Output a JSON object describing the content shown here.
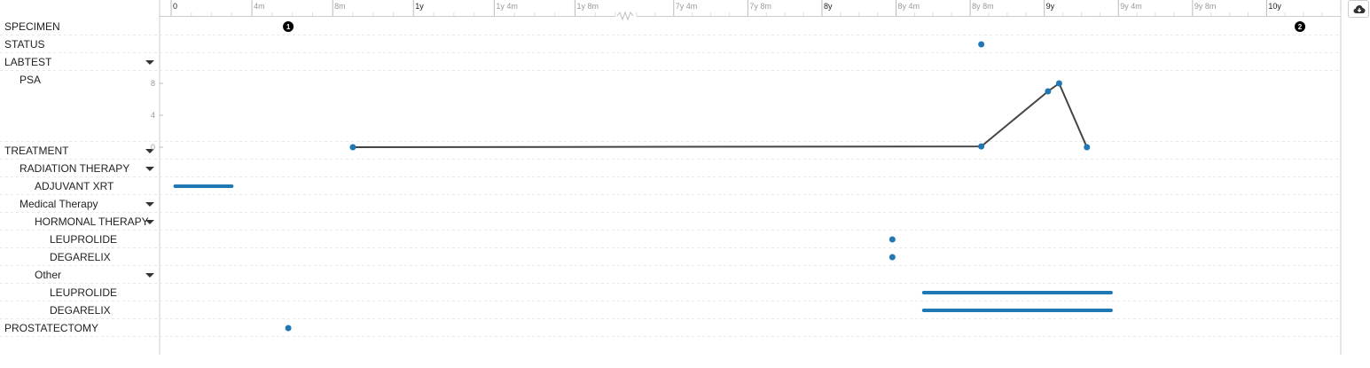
{
  "tracks": [
    {
      "label": "SPECIMEN",
      "indent": 0,
      "collapsible": false
    },
    {
      "label": "STATUS",
      "indent": 0,
      "collapsible": false
    },
    {
      "label": "LABTEST",
      "indent": 0,
      "collapsible": true
    },
    {
      "label": "PSA",
      "indent": 1,
      "collapsible": false,
      "kind": "line"
    },
    {
      "label": "TREATMENT",
      "indent": 0,
      "collapsible": true
    },
    {
      "label": "RADIATION THERAPY",
      "indent": 1,
      "collapsible": true
    },
    {
      "label": "ADJUVANT XRT",
      "indent": 2,
      "collapsible": false
    },
    {
      "label": "Medical Therapy",
      "indent": 1,
      "collapsible": true
    },
    {
      "label": "HORMONAL THERAPY",
      "indent": 2,
      "collapsible": true
    },
    {
      "label": "LEUPROLIDE",
      "indent": 3,
      "collapsible": false
    },
    {
      "label": "DEGARELIX",
      "indent": 3,
      "collapsible": false
    },
    {
      "label": "Other",
      "indent": 2,
      "collapsible": true
    },
    {
      "label": "LEUPROLIDE",
      "indent": 3,
      "collapsible": false
    },
    {
      "label": "DEGARELIX",
      "indent": 3,
      "collapsible": false
    },
    {
      "label": "PROSTATECTOMY",
      "indent": 0,
      "collapsible": false
    }
  ],
  "time_axis": {
    "ticks": [
      {
        "label": "0",
        "months": 0,
        "major": true
      },
      {
        "label": "4m",
        "months": 4,
        "major": false
      },
      {
        "label": "8m",
        "months": 8,
        "major": false
      },
      {
        "label": "1y",
        "months": 12,
        "major": true
      },
      {
        "label": "1y 4m",
        "months": 16,
        "major": false
      },
      {
        "label": "1y 8m",
        "months": 20,
        "major": false
      },
      {
        "label": "7y 4m",
        "months": 88,
        "major": false
      },
      {
        "label": "7y 8m",
        "months": 92,
        "major": false
      },
      {
        "label": "8y",
        "months": 96,
        "major": true
      },
      {
        "label": "8y 4m",
        "months": 100,
        "major": false
      },
      {
        "label": "8y 8m",
        "months": 104,
        "major": false
      },
      {
        "label": "9y",
        "months": 108,
        "major": true
      },
      {
        "label": "9y 4m",
        "months": 112,
        "major": false
      },
      {
        "label": "9y 8m",
        "months": 116,
        "major": false
      },
      {
        "label": "10y",
        "months": 120,
        "major": true
      }
    ],
    "break_after_months": 22,
    "break_before_months": 86
  },
  "psa_axis": {
    "ticks": [
      "8",
      "4",
      "0"
    ],
    "ymax": 8,
    "ymin": 0
  },
  "specimen_markers": [
    {
      "label": "1",
      "months": 5.8
    },
    {
      "label": "2",
      "months": 121.8
    }
  ],
  "status_points": [
    {
      "months": 104.6
    }
  ],
  "psa_series": [
    {
      "months": 9,
      "value": 0
    },
    {
      "months": 104.6,
      "value": 0.1
    },
    {
      "months": 108.2,
      "value": 7
    },
    {
      "months": 108.8,
      "value": 8
    },
    {
      "months": 110.3,
      "value": 0
    }
  ],
  "events": {
    "adjuvant_xrt": [
      {
        "start": 0.2,
        "end": 3
      }
    ],
    "hormonal_leuprolide": [
      {
        "months": 99.8
      }
    ],
    "hormonal_degarelix": [
      {
        "months": 99.8
      }
    ],
    "other_leuprolide": [
      {
        "start": 101.5,
        "end": 111.6
      }
    ],
    "other_degarelix": [
      {
        "start": 101.5,
        "end": 111.6
      }
    ],
    "prostatectomy": [
      {
        "months": 5.8
      }
    ]
  },
  "colors": {
    "point": "#1f77b4",
    "line": "#444444",
    "marker": "#000000",
    "grid": "#e8e8e8",
    "axis": "#cccccc"
  },
  "toolbar": {
    "download_icon": "cloud-download-icon"
  }
}
